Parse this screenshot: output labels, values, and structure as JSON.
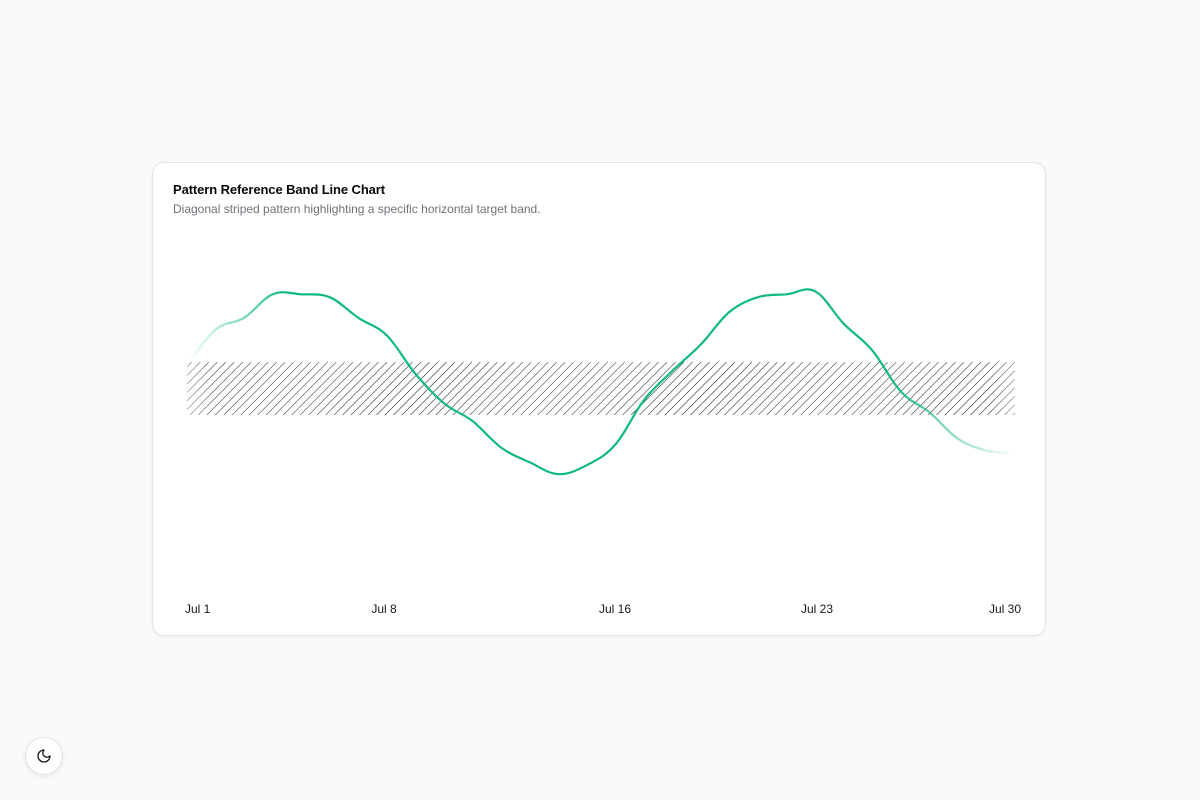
{
  "card": {
    "title": "Pattern Reference Band Line Chart",
    "subtitle": "Diagonal striped pattern highlighting a specific horizontal target band."
  },
  "chart_data": {
    "type": "line",
    "title": "Pattern Reference Band Line Chart",
    "subtitle": "Diagonal striped pattern highlighting a specific horizontal target band.",
    "x": [
      "2024-07-01",
      "2024-07-02",
      "2024-07-03",
      "2024-07-04",
      "2024-07-05",
      "2024-07-06",
      "2024-07-07",
      "2024-07-08",
      "2024-07-09",
      "2024-07-10",
      "2024-07-11",
      "2024-07-12",
      "2024-07-13",
      "2024-07-14",
      "2024-07-15",
      "2024-07-16",
      "2024-07-17",
      "2024-07-18",
      "2024-07-19",
      "2024-07-20",
      "2024-07-21",
      "2024-07-22",
      "2024-07-23",
      "2024-07-24",
      "2024-07-25",
      "2024-07-26",
      "2024-07-27",
      "2024-07-28",
      "2024-07-29",
      "2024-07-30"
    ],
    "x_ticks": [
      "Jul 1",
      "Jul 8",
      "Jul 16",
      "Jul 23",
      "Jul 30"
    ],
    "series": [
      {
        "color": "#10b981",
        "values": [
          57,
          69,
          73,
          81,
          81,
          80,
          73,
          67,
          54,
          44,
          38,
          29,
          24,
          20,
          23,
          30,
          45,
          55,
          64,
          75,
          80,
          81,
          82,
          71,
          62,
          48,
          41,
          32,
          28,
          27
        ]
      }
    ],
    "reference_band": {
      "y_from": 40,
      "y_to": 58,
      "pattern": "diagonal-stripes",
      "color": "#18181b"
    },
    "ylim": [
      0,
      95
    ],
    "grid": false,
    "legend": "none",
    "line_fade_at_edges": true
  },
  "icons": {
    "theme_toggle": "moon-icon"
  }
}
